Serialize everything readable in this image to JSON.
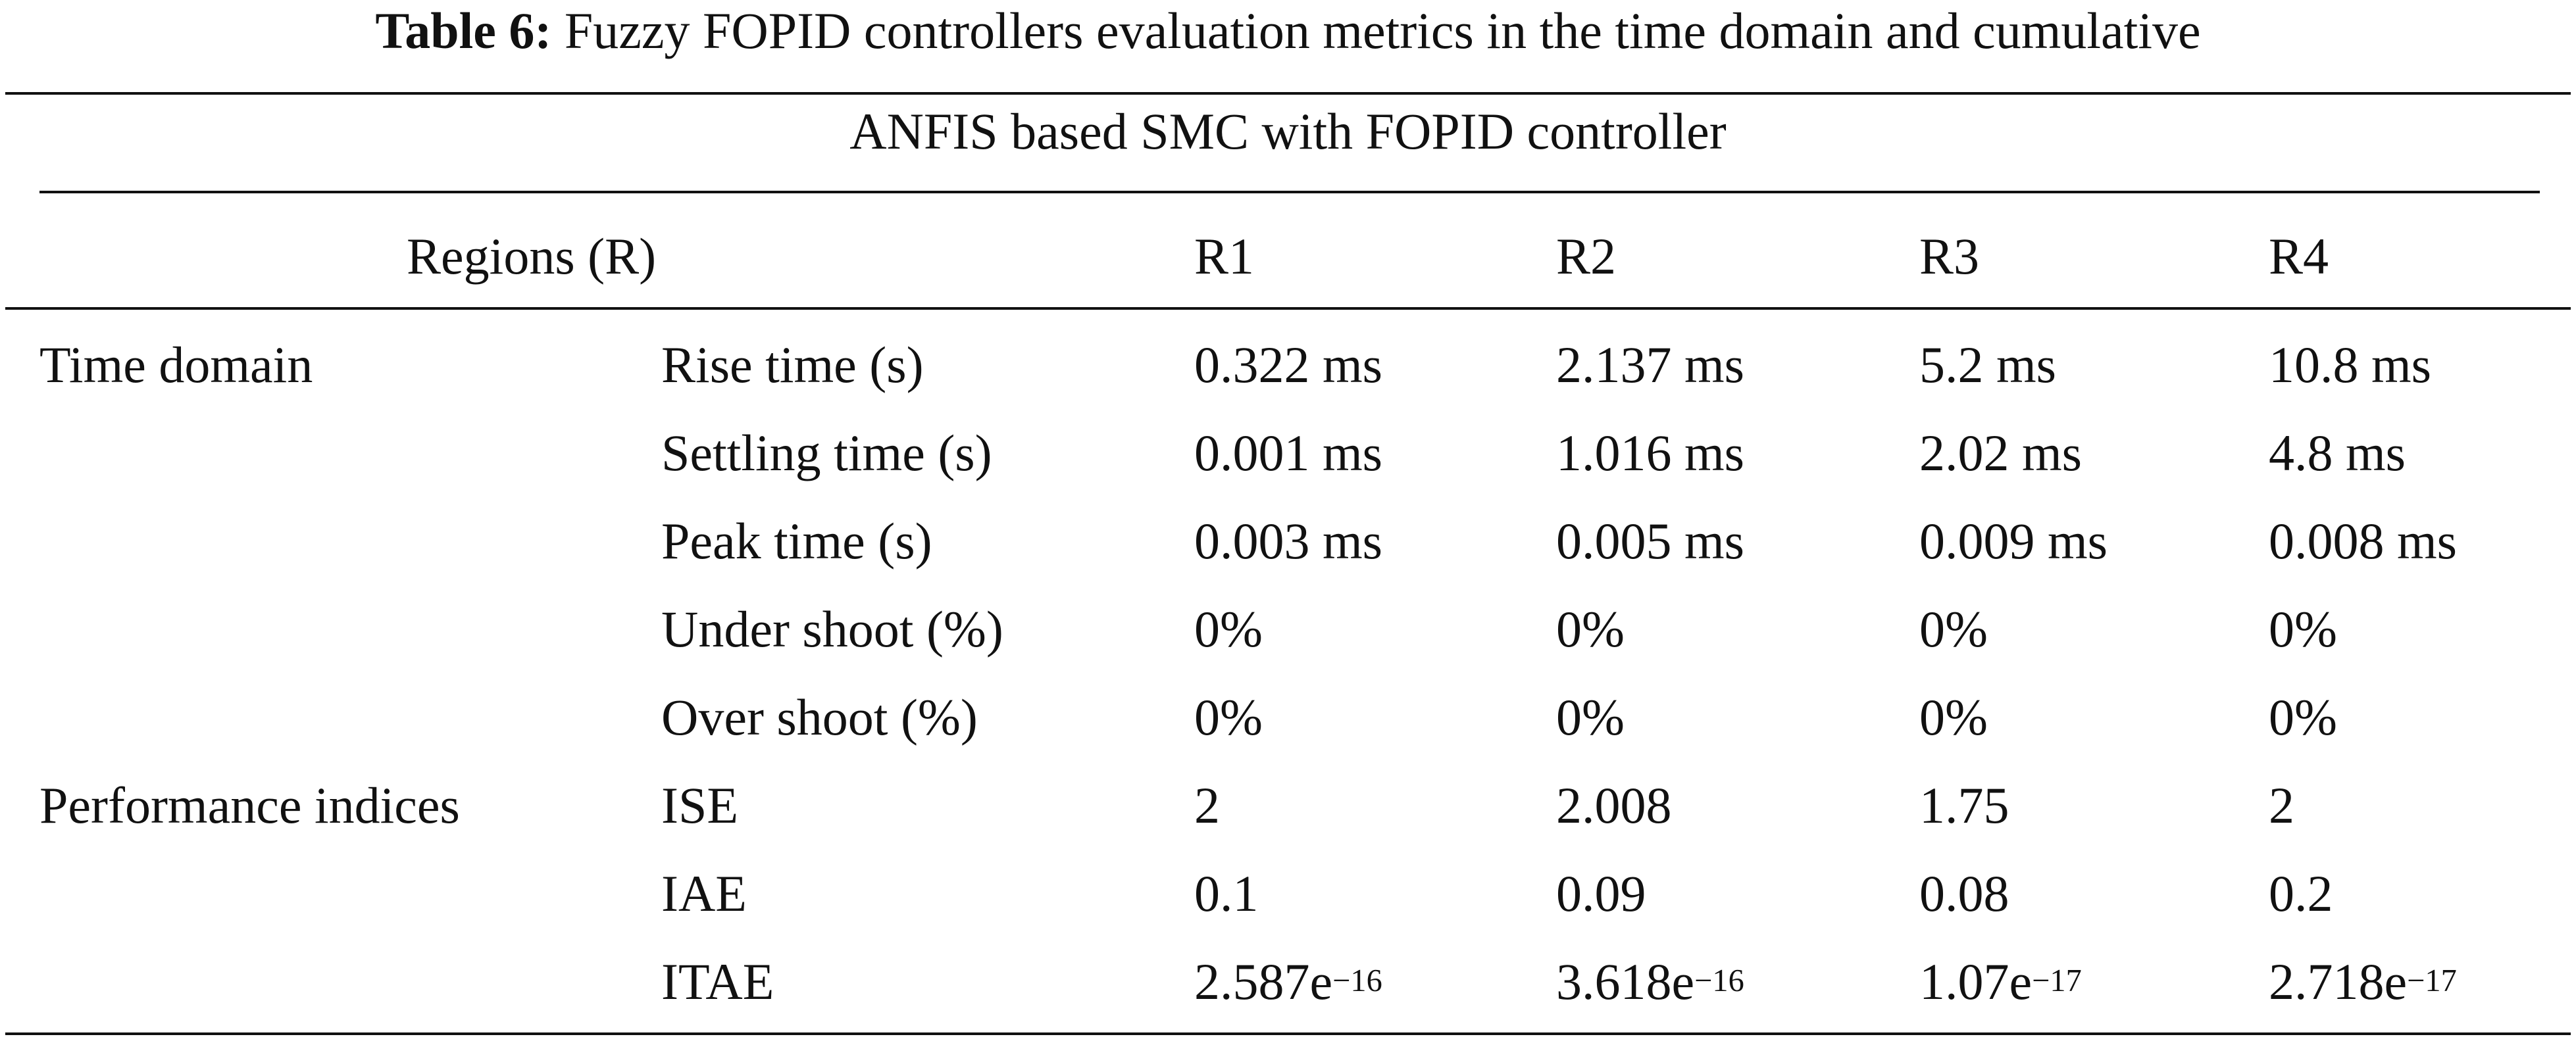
{
  "caption": {
    "label": "Table 6:",
    "text": "Fuzzy FOPID controllers evaluation metrics in the time domain and cumulative"
  },
  "table": {
    "group_title": "ANFIS based SMC with FOPID controller",
    "header": {
      "regions": "Regions (R)",
      "r1": "R1",
      "r2": "R2",
      "r3": "R3",
      "r4": "R4"
    },
    "rows": [
      {
        "category": "Time domain",
        "metric": "Rise time (s)",
        "r1": "0.322 ms",
        "r2": "2.137 ms",
        "r3": "5.2 ms",
        "r4": "10.8 ms"
      },
      {
        "category": "",
        "metric": "Settling time (s)",
        "r1": "0.001 ms",
        "r2": "1.016 ms",
        "r3": "2.02 ms",
        "r4": "4.8 ms"
      },
      {
        "category": "",
        "metric": "Peak time (s)",
        "r1": "0.003 ms",
        "r2": "0.005 ms",
        "r3": "0.009 ms",
        "r4": "0.008 ms"
      },
      {
        "category": "",
        "metric": "Under shoot (%)",
        "r1": "0%",
        "r2": "0%",
        "r3": "0%",
        "r4": "0%"
      },
      {
        "category": "",
        "metric": "Over shoot (%)",
        "r1": "0%",
        "r2": "0%",
        "r3": "0%",
        "r4": "0%"
      },
      {
        "category": "Performance indices",
        "metric": "ISE",
        "r1": "2",
        "r2": "2.008",
        "r3": "1.75",
        "r4": "2"
      },
      {
        "category": "",
        "metric": "IAE",
        "r1": "0.1",
        "r2": "0.09",
        "r3": "0.08",
        "r4": "0.2"
      },
      {
        "category": "",
        "metric": "ITAE",
        "r1": "2.587e",
        "r2": "3.618e",
        "r3": "1.07e",
        "r4": "2.718e"
      }
    ],
    "itae_exponents": {
      "r1": "−16",
      "r2": "−16",
      "r3": "−17",
      "r4": "−17"
    }
  }
}
